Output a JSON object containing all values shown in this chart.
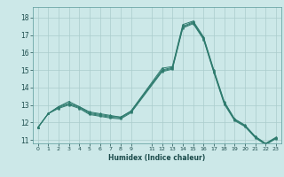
{
  "title": "",
  "xlabel": "Humidex (Indice chaleur)",
  "ylabel": "",
  "background_color": "#cce8e8",
  "grid_color": "#aacccc",
  "line_color": "#2e7b6e",
  "xlim": [
    -0.5,
    23.5
  ],
  "ylim": [
    10.8,
    18.6
  ],
  "yticks": [
    11,
    12,
    13,
    14,
    15,
    16,
    17,
    18
  ],
  "xticks": [
    0,
    1,
    2,
    3,
    4,
    5,
    6,
    7,
    8,
    9,
    11,
    12,
    13,
    14,
    15,
    16,
    17,
    18,
    19,
    20,
    21,
    22,
    23
  ],
  "lines": [
    [
      11.7,
      12.5,
      12.9,
      13.2,
      12.9,
      12.6,
      12.5,
      12.4,
      12.3,
      12.65,
      null,
      15.1,
      15.2,
      17.6,
      17.8,
      16.9,
      15.0,
      13.2,
      12.2,
      11.85,
      11.2,
      10.8,
      11.15
    ],
    [
      11.7,
      12.5,
      12.9,
      13.1,
      12.9,
      12.55,
      12.45,
      12.35,
      12.3,
      12.65,
      null,
      15.0,
      15.15,
      17.5,
      17.75,
      16.85,
      14.95,
      13.15,
      12.18,
      11.82,
      11.18,
      10.78,
      11.12
    ],
    [
      11.7,
      12.5,
      12.85,
      13.05,
      12.85,
      12.5,
      12.4,
      12.3,
      12.25,
      12.6,
      null,
      14.95,
      15.1,
      17.45,
      17.7,
      16.8,
      14.9,
      13.1,
      12.15,
      11.79,
      11.15,
      10.75,
      11.1
    ],
    [
      11.7,
      12.5,
      12.8,
      13.0,
      12.8,
      12.45,
      12.35,
      12.25,
      12.2,
      12.55,
      null,
      14.9,
      15.05,
      17.4,
      17.65,
      16.75,
      14.85,
      13.05,
      12.1,
      11.76,
      11.12,
      10.72,
      11.07
    ]
  ]
}
